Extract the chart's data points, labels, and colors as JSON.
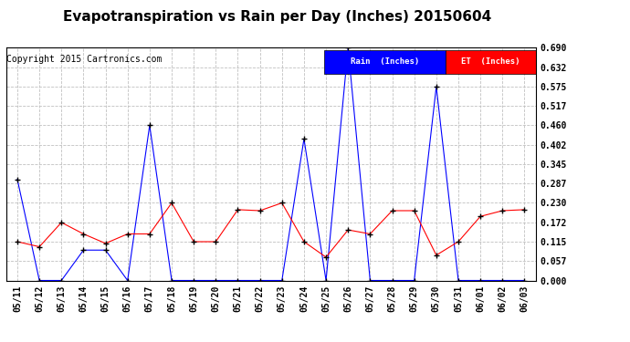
{
  "title": "Evapotranspiration vs Rain per Day (Inches) 20150604",
  "copyright": "Copyright 2015 Cartronics.com",
  "legend_rain": "Rain  (Inches)",
  "legend_et": "ET  (Inches)",
  "x_labels": [
    "05/11",
    "05/12",
    "05/13",
    "05/14",
    "05/15",
    "05/16",
    "05/17",
    "05/18",
    "05/19",
    "05/20",
    "05/21",
    "05/22",
    "05/23",
    "05/24",
    "05/25",
    "05/26",
    "05/27",
    "05/28",
    "05/29",
    "05/30",
    "05/31",
    "06/01",
    "06/02",
    "06/03"
  ],
  "rain_values": [
    0.3,
    0.0,
    0.0,
    0.09,
    0.09,
    0.0,
    0.46,
    0.0,
    0.0,
    0.0,
    0.0,
    0.0,
    0.0,
    0.42,
    0.0,
    0.69,
    0.0,
    0.0,
    0.0,
    0.575,
    0.0,
    0.0,
    0.0,
    0.0
  ],
  "et_values": [
    0.115,
    0.1,
    0.172,
    0.138,
    0.11,
    0.138,
    0.138,
    0.23,
    0.115,
    0.115,
    0.21,
    0.207,
    0.23,
    0.115,
    0.069,
    0.15,
    0.138,
    0.207,
    0.207,
    0.075,
    0.115,
    0.19,
    0.207,
    0.21
  ],
  "ylim": [
    0.0,
    0.69
  ],
  "yticks": [
    0.0,
    0.057,
    0.115,
    0.172,
    0.23,
    0.287,
    0.345,
    0.402,
    0.46,
    0.517,
    0.575,
    0.632,
    0.69
  ],
  "rain_color": "#0000ff",
  "et_color": "#ff0000",
  "grid_color": "#c0c0c0",
  "background_color": "#ffffff",
  "title_fontsize": 11,
  "tick_fontsize": 7,
  "copyright_fontsize": 7,
  "legend_bg_rain": "#0000ff",
  "legend_bg_et": "#ff0000"
}
